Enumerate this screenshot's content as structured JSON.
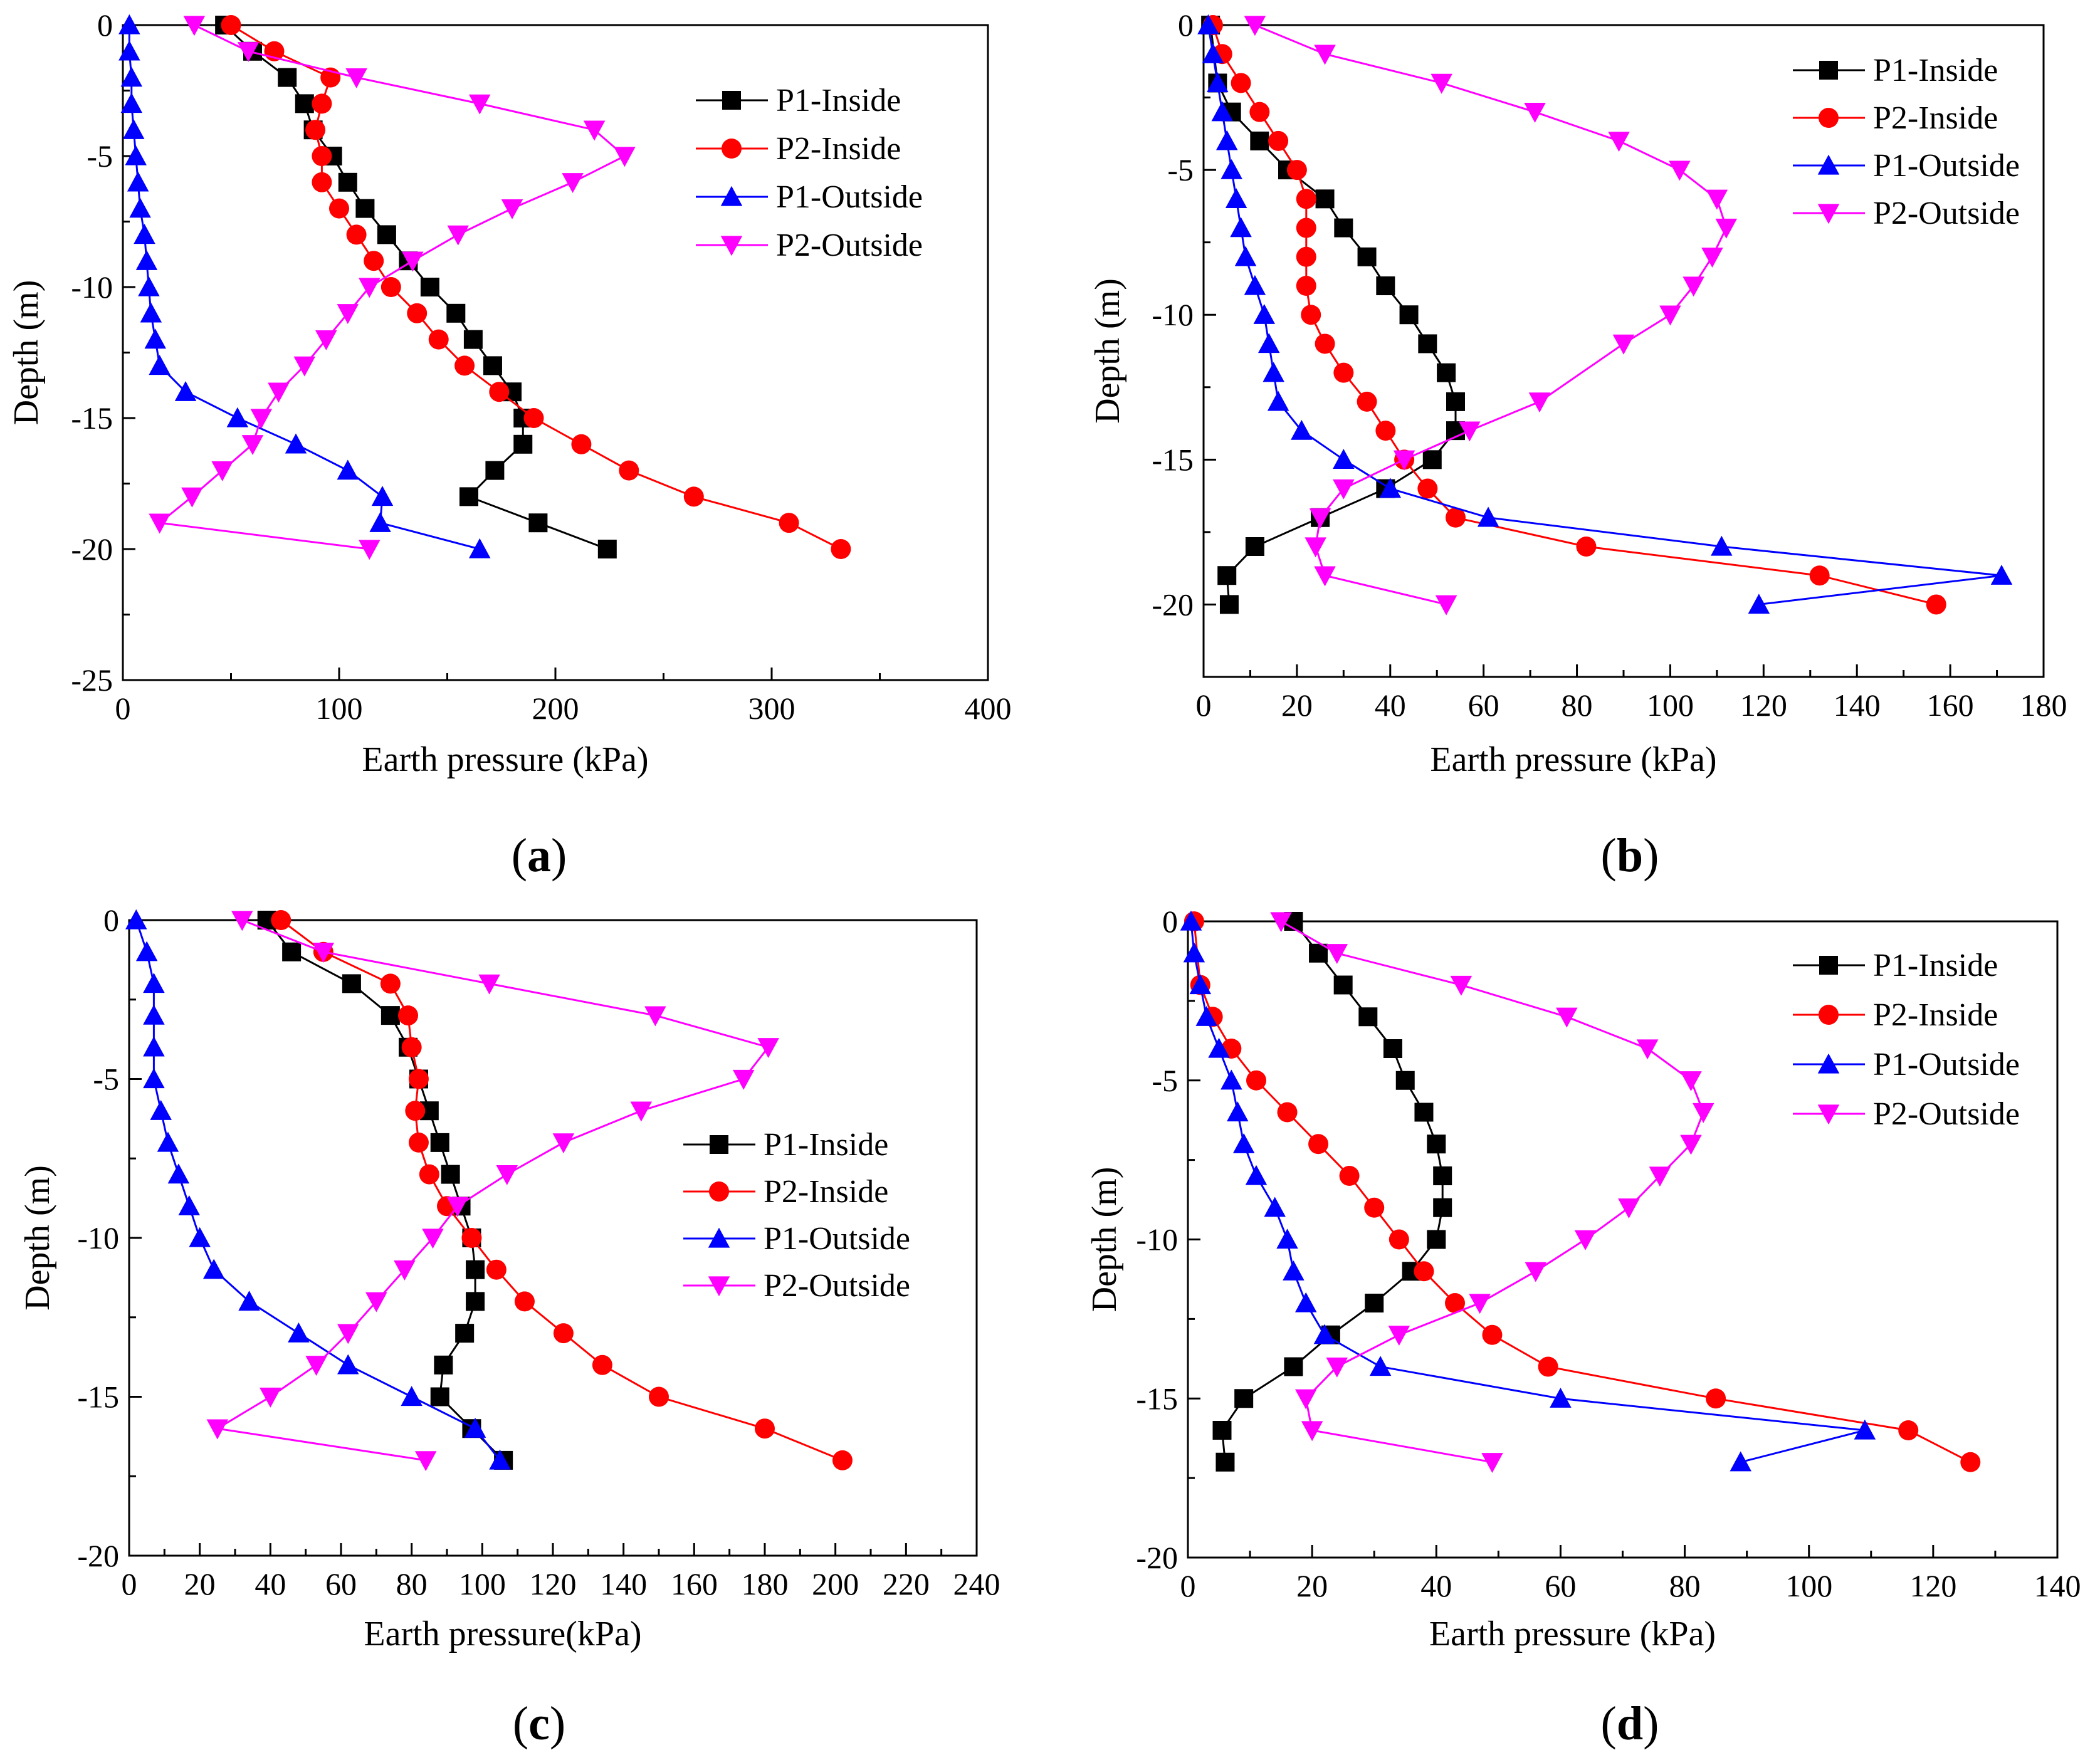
{
  "figure": {
    "colors": {
      "P1-Inside": "#000000",
      "P2-Inside": "#ff0000",
      "P1-Outside": "#0000ff",
      "P2-Outside": "#ff00ff"
    }
  },
  "chart_data": [
    {
      "panel": "a",
      "label_open": "(",
      "label_letter": "a",
      "label_close": ")",
      "type": "line",
      "title": "",
      "xlabel": "Earth pressure (kPa)",
      "ylabel": "Depth (m)",
      "xlim": [
        0,
        400
      ],
      "ylim": [
        -25,
        0
      ],
      "xticks": [
        0,
        100,
        200,
        300,
        400
      ],
      "yticks": [
        -25,
        -20,
        -15,
        -10,
        -5,
        0
      ],
      "grid": false,
      "legend_position": "top-right",
      "series": [
        {
          "name": "P1-Inside",
          "marker": "square",
          "x": [
            47,
            60,
            76,
            84,
            88,
            97,
            104,
            112,
            122,
            132,
            142,
            154,
            162,
            171,
            180,
            185,
            185,
            172,
            160,
            192,
            224
          ],
          "y": [
            0,
            -1,
            -2,
            -3,
            -4,
            -5,
            -6,
            -7,
            -8,
            -9,
            -10,
            -11,
            -12,
            -13,
            -14,
            -15,
            -16,
            -17,
            -18,
            -19,
            -20
          ]
        },
        {
          "name": "P2-Inside",
          "marker": "circle",
          "x": [
            50,
            70,
            96,
            92,
            89,
            92,
            92,
            100,
            108,
            116,
            124,
            136,
            146,
            158,
            174,
            190,
            212,
            234,
            264,
            308,
            332
          ],
          "y": [
            0,
            -1,
            -2,
            -3,
            -4,
            -5,
            -6,
            -7,
            -8,
            -9,
            -10,
            -11,
            -12,
            -13,
            -14,
            -15,
            -16,
            -17,
            -18,
            -19,
            -20
          ]
        },
        {
          "name": "P1-Outside",
          "marker": "triangle-up",
          "x": [
            3,
            3,
            4,
            4,
            5,
            6,
            7,
            8,
            10,
            11,
            12,
            13,
            15,
            17,
            29,
            53,
            80,
            104,
            120,
            119,
            165
          ],
          "y": [
            0,
            -1,
            -2,
            -3,
            -4,
            -5,
            -6,
            -7,
            -8,
            -9,
            -10,
            -11,
            -12,
            -13,
            -14,
            -15,
            -16,
            -17,
            -18,
            -19,
            -20
          ]
        },
        {
          "name": "P2-Outside",
          "marker": "triangle-down",
          "x": [
            33,
            58,
            108,
            165,
            218,
            232,
            208,
            180,
            155,
            134,
            114,
            104,
            94,
            84,
            72,
            64,
            60,
            46,
            32,
            17,
            114
          ],
          "y": [
            0,
            -1,
            -2,
            -3,
            -4,
            -5,
            -6,
            -7,
            -8,
            -9,
            -10,
            -11,
            -12,
            -13,
            -14,
            -15,
            -16,
            -17,
            -18,
            -19,
            -20
          ]
        }
      ]
    },
    {
      "panel": "b",
      "label_open": "(",
      "label_letter": "b",
      "label_close": ")",
      "type": "line",
      "title": "",
      "xlabel": "Earth pressure (kPa)",
      "ylabel": "Depth (m)",
      "xlim": [
        0,
        180
      ],
      "ylim": [
        -22.5,
        0
      ],
      "xticks": [
        0,
        20,
        40,
        60,
        80,
        100,
        120,
        140,
        160,
        180
      ],
      "yticks": [
        -20,
        -15,
        -10,
        -5,
        0
      ],
      "grid": false,
      "legend_position": "top-right",
      "series": [
        {
          "name": "P1-Inside",
          "marker": "square",
          "x": [
            1.5,
            3,
            6,
            12,
            18,
            26,
            30,
            35,
            39,
            44,
            48,
            52,
            54,
            54,
            49,
            39,
            25,
            11,
            5,
            5.5
          ],
          "y": [
            0,
            -2,
            -3,
            -4,
            -5,
            -6,
            -7,
            -8,
            -9,
            -10,
            -11,
            -12,
            -13,
            -14,
            -15,
            -16,
            -17,
            -18,
            -19,
            -20
          ]
        },
        {
          "name": "P2-Inside",
          "marker": "circle",
          "x": [
            2,
            4,
            8,
            12,
            16,
            20,
            22,
            22,
            22,
            22,
            23,
            26,
            30,
            35,
            39,
            43,
            48,
            54,
            82,
            132,
            157
          ],
          "y": [
            0,
            -1,
            -2,
            -3,
            -4,
            -5,
            -6,
            -7,
            -8,
            -9,
            -10,
            -11,
            -12,
            -13,
            -14,
            -15,
            -16,
            -17,
            -18,
            -19,
            -20
          ]
        },
        {
          "name": "P1-Outside",
          "marker": "triangle-up",
          "x": [
            1,
            2,
            3,
            4,
            5,
            6,
            7,
            8,
            9,
            11,
            13,
            14,
            15,
            16,
            21,
            30,
            40,
            61,
            111,
            171,
            119
          ],
          "y": [
            0,
            -1,
            -2,
            -3,
            -4,
            -5,
            -6,
            -7,
            -8,
            -9,
            -10,
            -11,
            -12,
            -13,
            -14,
            -15,
            -16,
            -17,
            -18,
            -19,
            -20
          ]
        },
        {
          "name": "P2-Outside",
          "marker": "triangle-down",
          "x": [
            11,
            26,
            51,
            71,
            89,
            102,
            110,
            112,
            109,
            105,
            100,
            90,
            72,
            57,
            43,
            30,
            25,
            24,
            26,
            52
          ],
          "y": [
            0,
            -1,
            -2,
            -3,
            -4,
            -5,
            -6,
            -7,
            -8,
            -9,
            -10,
            -11,
            -13,
            -14,
            -15,
            -16,
            -17,
            -18,
            -19,
            -20
          ]
        }
      ]
    },
    {
      "panel": "c",
      "label_open": "(",
      "label_letter": "c",
      "label_close": ")",
      "type": "line",
      "title": "",
      "xlabel": "Earth pressure(kPa)",
      "ylabel": "Depth (m)",
      "xlim": [
        0,
        240
      ],
      "ylim": [
        -20,
        0
      ],
      "xticks": [
        0,
        20,
        40,
        60,
        80,
        100,
        120,
        140,
        160,
        180,
        200,
        220,
        240
      ],
      "yticks": [
        -20,
        -15,
        -10,
        -5,
        0
      ],
      "grid": false,
      "legend_position": "center-right",
      "series": [
        {
          "name": "P1-Inside",
          "marker": "square",
          "x": [
            39,
            46,
            63,
            74,
            79,
            82,
            85,
            88,
            91,
            94,
            97,
            98,
            98,
            95,
            89,
            88,
            97,
            106
          ],
          "y": [
            0,
            -1,
            -2,
            -3,
            -4,
            -5,
            -6,
            -7,
            -8,
            -9,
            -10,
            -11,
            -12,
            -13,
            -14,
            -15,
            -16,
            -17
          ]
        },
        {
          "name": "P2-Inside",
          "marker": "circle",
          "x": [
            43,
            55,
            74,
            79,
            80,
            82,
            81,
            82,
            85,
            90,
            97,
            104,
            112,
            123,
            134,
            150,
            180,
            202
          ],
          "y": [
            0,
            -1,
            -2,
            -3,
            -4,
            -5,
            -6,
            -7,
            -8,
            -9,
            -10,
            -11,
            -12,
            -13,
            -14,
            -15,
            -16,
            -17
          ]
        },
        {
          "name": "P1-Outside",
          "marker": "triangle-up",
          "x": [
            2,
            5,
            7,
            7,
            7,
            7,
            9,
            11,
            14,
            17,
            20,
            24,
            34,
            48,
            62,
            80,
            98,
            105
          ],
          "y": [
            0,
            -1,
            -2,
            -3,
            -4,
            -5,
            -6,
            -7,
            -8,
            -9,
            -10,
            -11,
            -12,
            -13,
            -14,
            -15,
            -16,
            -17
          ]
        },
        {
          "name": "P2-Outside",
          "marker": "triangle-down",
          "x": [
            32,
            55,
            102,
            149,
            181,
            174,
            145,
            123,
            107,
            93,
            86,
            78,
            70,
            62,
            53,
            40,
            25,
            84
          ],
          "y": [
            0,
            -1,
            -2,
            -3,
            -4,
            -5,
            -6,
            -7,
            -8,
            -9,
            -10,
            -11,
            -12,
            -13,
            -14,
            -15,
            -16,
            -17
          ]
        }
      ]
    },
    {
      "panel": "d",
      "label_open": "(",
      "label_letter": "d",
      "label_close": ")",
      "type": "line",
      "title": "",
      "xlabel": "Earth pressure (kPa)",
      "ylabel": "Depth (m)",
      "xlim": [
        0,
        140
      ],
      "ylim": [
        -20,
        0
      ],
      "xticks": [
        0,
        20,
        40,
        60,
        80,
        100,
        120,
        140
      ],
      "yticks": [
        -20,
        -15,
        -10,
        -5,
        0
      ],
      "grid": false,
      "legend_position": "top-right",
      "series": [
        {
          "name": "P1-Inside",
          "marker": "square",
          "x": [
            17,
            21,
            25,
            29,
            33,
            35,
            38,
            40,
            41,
            41,
            40,
            36,
            30,
            23,
            17,
            9,
            5.5,
            6
          ],
          "y": [
            0,
            -1,
            -2,
            -3,
            -4,
            -5,
            -6,
            -7,
            -8,
            -9,
            -10,
            -11,
            -12,
            -13,
            -14,
            -15,
            -16,
            -17
          ]
        },
        {
          "name": "P2-Inside",
          "marker": "circle",
          "x": [
            1,
            2,
            4,
            7,
            11,
            16,
            21,
            26,
            30,
            34,
            38,
            43,
            49,
            58,
            85,
            116,
            126
          ],
          "y": [
            0,
            -2,
            -3,
            -4,
            -5,
            -6,
            -7,
            -8,
            -9,
            -10,
            -11,
            -12,
            -13,
            -14,
            -15,
            -16,
            -17
          ]
        },
        {
          "name": "P1-Outside",
          "marker": "triangle-up",
          "x": [
            0.5,
            1,
            2,
            3,
            5,
            7,
            8,
            9,
            11,
            14,
            16,
            17,
            19,
            22,
            31,
            60,
            109,
            89
          ],
          "y": [
            0,
            -1,
            -2,
            -3,
            -4,
            -5,
            -6,
            -7,
            -8,
            -9,
            -10,
            -11,
            -12,
            -13,
            -14,
            -15,
            -16,
            -17
          ]
        },
        {
          "name": "P2-Outside",
          "marker": "triangle-down",
          "x": [
            15,
            24,
            44,
            61,
            74,
            81,
            83,
            81,
            76,
            71,
            64,
            56,
            47,
            34,
            24,
            19,
            20,
            49
          ],
          "y": [
            0,
            -1,
            -2,
            -3,
            -4,
            -5,
            -6,
            -7,
            -8,
            -9,
            -10,
            -11,
            -12,
            -13,
            -14,
            -15,
            -16,
            -17
          ]
        }
      ]
    }
  ]
}
